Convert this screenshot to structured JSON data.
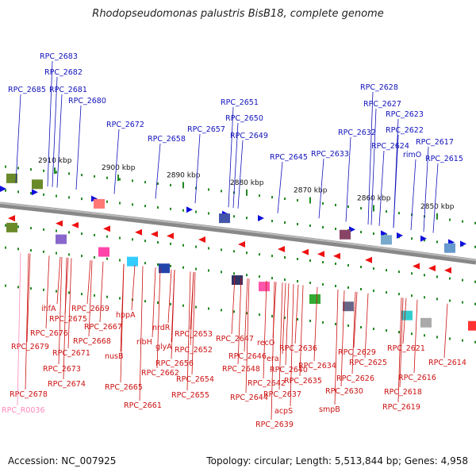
{
  "title": "Rhodopseudomonas palustris BisB18, complete genome",
  "footer": {
    "accession": "Accession: NC_007925",
    "summary": "Topology: circular; Length: 5,513,844 bp; Genes: 4,958"
  },
  "colors": {
    "forward": "#1010dd",
    "reverse": "#ee1111",
    "rna": "#ff88bb",
    "axis": "#888888",
    "tick": "#228822"
  },
  "scale_labels": [
    "2910 kbp",
    "2900 kbp",
    "2890 kbp",
    "2880 kbp",
    "2870 kbp",
    "2860 kbp",
    "2850 kbp"
  ],
  "top_labels": [
    "RPC_2683",
    "RPC_2682",
    "RPC_2685",
    "RPC_2681",
    "RPC_2680",
    "RPC_2672",
    "RPC_2651",
    "RPC_2650",
    "RPC_2657",
    "RPC_2649",
    "RPC_2658",
    "RPC_2645",
    "RPC_2628",
    "RPC_2627",
    "RPC_2623",
    "RPC_2632",
    "RPC_2622",
    "RPC_2633",
    "RPC_2624",
    "RPC_2617",
    "rimO",
    "RPC_2615"
  ],
  "bottom_labels": [
    "ihfA",
    "RPC_2669",
    "RPC_2675",
    "hppA",
    "RPC_2667",
    "RPC_2676",
    "RPC_2668",
    "RPC_2679",
    "RPC_2671",
    "RPC_2673",
    "RPC_2674",
    "RPC_2678",
    "RPC_R0036",
    "nrdR",
    "ribH",
    "glyA",
    "nusB",
    "RPC_2662",
    "RPC_2665",
    "RPC_2661",
    "RPC_2653",
    "RPC_2652",
    "RPC_2656",
    "RPC_2654",
    "RPC_2655",
    "RPC_2647",
    "RPC_2646",
    "RPC_2648",
    "RPC_2644",
    "recO",
    "era",
    "RPC_2642",
    "RPC_2640",
    "RPC_2637",
    "acpS",
    "RPC_2639",
    "RPC_2636",
    "RPC_2634",
    "RPC_2635",
    "RPC_2629",
    "RPC_2630",
    "smpB",
    "RPC_2625",
    "RPC_2626",
    "RPC_2621",
    "RPC_2614",
    "RPC_2616",
    "RPC_2618",
    "RPC_2619"
  ]
}
